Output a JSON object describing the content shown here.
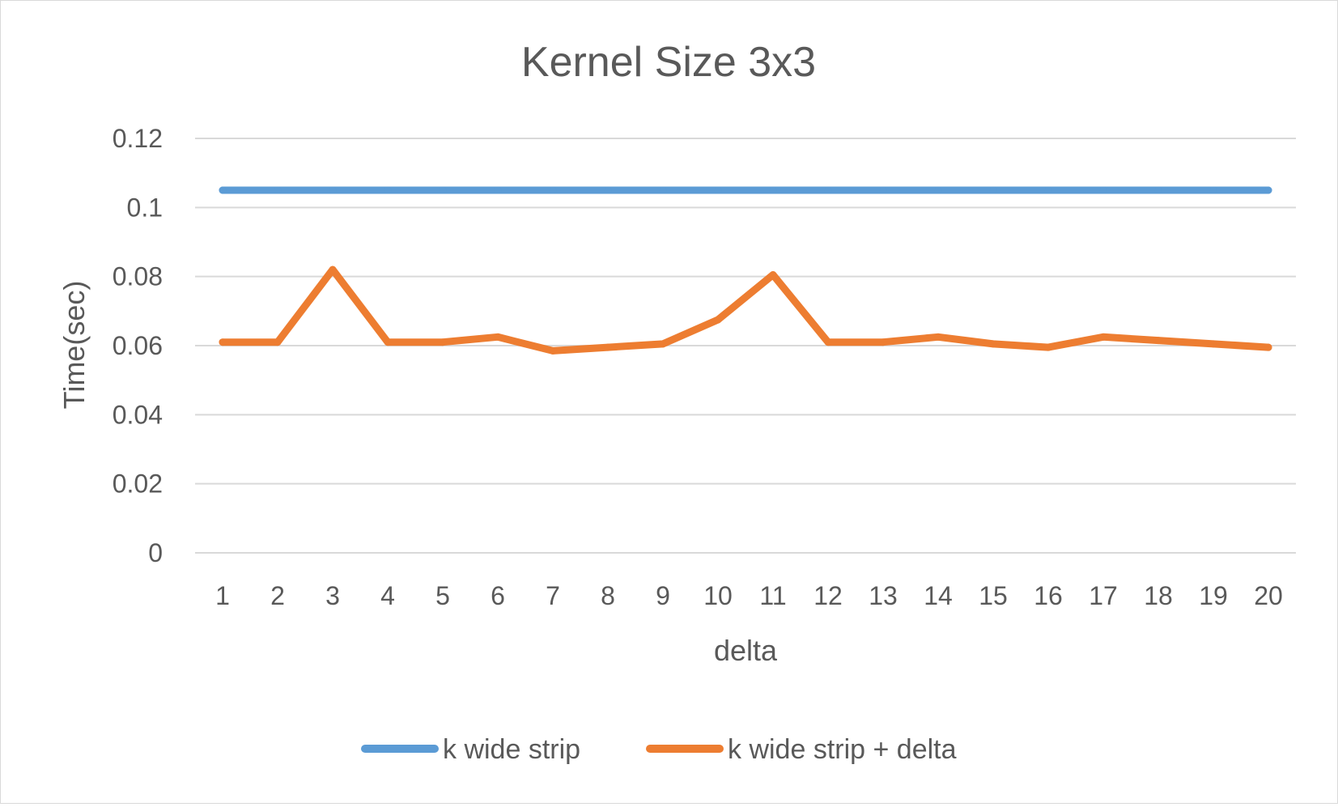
{
  "chart_data": {
    "type": "line",
    "title": "Kernel Size 3x3",
    "xlabel": "delta",
    "ylabel": "Time(sec)",
    "categories": [
      "1",
      "2",
      "3",
      "4",
      "5",
      "6",
      "7",
      "8",
      "9",
      "10",
      "11",
      "12",
      "13",
      "14",
      "15",
      "16",
      "17",
      "18",
      "19",
      "20"
    ],
    "ylim": [
      0,
      0.12
    ],
    "yticks": [
      "0.12",
      "0.1",
      "0.08",
      "0.06",
      "0.04",
      "0.02",
      "0"
    ],
    "grid": true,
    "legend_position": "bottom",
    "series": [
      {
        "name": "k wide strip",
        "color": "#5b9bd5",
        "values": [
          0.105,
          0.105,
          0.105,
          0.105,
          0.105,
          0.105,
          0.105,
          0.105,
          0.105,
          0.105,
          0.105,
          0.105,
          0.105,
          0.105,
          0.105,
          0.105,
          0.105,
          0.105,
          0.105,
          0.105
        ]
      },
      {
        "name": "k wide strip + delta",
        "color": "#ed7d31",
        "values": [
          0.061,
          0.061,
          0.082,
          0.061,
          0.061,
          0.0625,
          0.0585,
          0.0595,
          0.0605,
          0.0675,
          0.0805,
          0.061,
          0.061,
          0.0625,
          0.0605,
          0.0595,
          0.0625,
          0.0615,
          0.0605,
          0.0595
        ]
      }
    ]
  }
}
